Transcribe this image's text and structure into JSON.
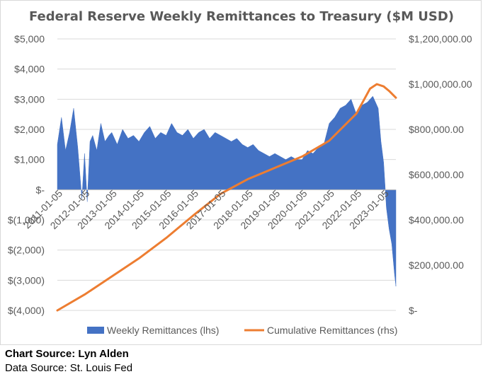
{
  "chart_data": {
    "type": "area",
    "title": "Federal Reserve Weekly Remittances to Treasury ($M USD)",
    "x_tick_labels": [
      "2011-01-05",
      "2012-01-05",
      "2013-01-05",
      "2014-01-05",
      "2015-01-05",
      "2016-01-05",
      "2017-01-05",
      "2018-01-05",
      "2019-01-05",
      "2020-01-05",
      "2021-01-05",
      "2022-01-05",
      "2023-01-05"
    ],
    "y_left": {
      "ticks": [
        "$5,000",
        "$4,000",
        "$3,000",
        "$2,000",
        "$1,000",
        "$-",
        "$(1,000)",
        "$(2,000)",
        "$(3,000)",
        "$(4,000)"
      ],
      "ylim": [
        -4000,
        5000
      ]
    },
    "y_right": {
      "ticks": [
        "$1,200,000.00",
        "$1,000,000.00",
        "$800,000.00",
        "$600,000.00",
        "$400,000.00",
        "$200,000.00",
        "$-"
      ],
      "ylim": [
        0,
        1200000
      ]
    },
    "x_range": [
      2011.0,
      2023.45
    ],
    "grid": "horizontal",
    "legend_position": "bottom",
    "series": [
      {
        "name": "Weekly Remittances (lhs)",
        "type": "area",
        "axis": "left",
        "color": "#4472C4",
        "x": [
          2011.0,
          2011.15,
          2011.3,
          2011.45,
          2011.6,
          2011.75,
          2011.9,
          2012.0,
          2012.1,
          2012.2,
          2012.3,
          2012.45,
          2012.6,
          2012.75,
          2012.9,
          2013.0,
          2013.2,
          2013.4,
          2013.6,
          2013.8,
          2014.0,
          2014.2,
          2014.4,
          2014.6,
          2014.8,
          2015.0,
          2015.2,
          2015.4,
          2015.6,
          2015.8,
          2016.0,
          2016.2,
          2016.4,
          2016.6,
          2016.8,
          2017.0,
          2017.2,
          2017.4,
          2017.6,
          2017.8,
          2018.0,
          2018.2,
          2018.4,
          2018.6,
          2018.8,
          2019.0,
          2019.2,
          2019.4,
          2019.6,
          2019.8,
          2020.0,
          2020.2,
          2020.4,
          2020.6,
          2020.8,
          2021.0,
          2021.2,
          2021.4,
          2021.6,
          2021.8,
          2022.0,
          2022.2,
          2022.4,
          2022.6,
          2022.8,
          2022.9,
          2023.0,
          2023.1,
          2023.2,
          2023.3,
          2023.4,
          2023.45
        ],
        "values": [
          1500,
          2400,
          1300,
          1900,
          2700,
          1400,
          -300,
          1200,
          -400,
          1600,
          1800,
          1300,
          2200,
          1600,
          1800,
          1900,
          1500,
          2000,
          1700,
          1800,
          1600,
          1900,
          2100,
          1700,
          1900,
          1800,
          2200,
          1900,
          1800,
          2000,
          1700,
          1900,
          2000,
          1700,
          1900,
          1800,
          1700,
          1600,
          1700,
          1500,
          1400,
          1500,
          1300,
          1200,
          1100,
          1200,
          1100,
          1000,
          1100,
          1000,
          1000,
          1300,
          1200,
          1400,
          1500,
          2200,
          2400,
          2700,
          2800,
          3000,
          2500,
          2800,
          2900,
          3100,
          2700,
          1600,
          900,
          -600,
          -1300,
          -1800,
          -2800,
          -3200
        ]
      },
      {
        "name": "Cumulative Remittances (rhs)",
        "type": "line",
        "axis": "right",
        "color": "#ED7D31",
        "x": [
          2011.0,
          2012.0,
          2013.0,
          2014.0,
          2015.0,
          2016.0,
          2017.0,
          2018.0,
          2019.0,
          2020.0,
          2021.0,
          2022.0,
          2022.5,
          2022.75,
          2023.0,
          2023.2,
          2023.45
        ],
        "values": [
          0,
          70000,
          150000,
          230000,
          320000,
          420000,
          515000,
          580000,
          630000,
          680000,
          750000,
          870000,
          980000,
          1000000,
          990000,
          970000,
          940000
        ]
      }
    ]
  },
  "source": {
    "chart_source": "Chart Source: Lyn Alden",
    "data_source": "Data Source: St. Louis Fed"
  }
}
